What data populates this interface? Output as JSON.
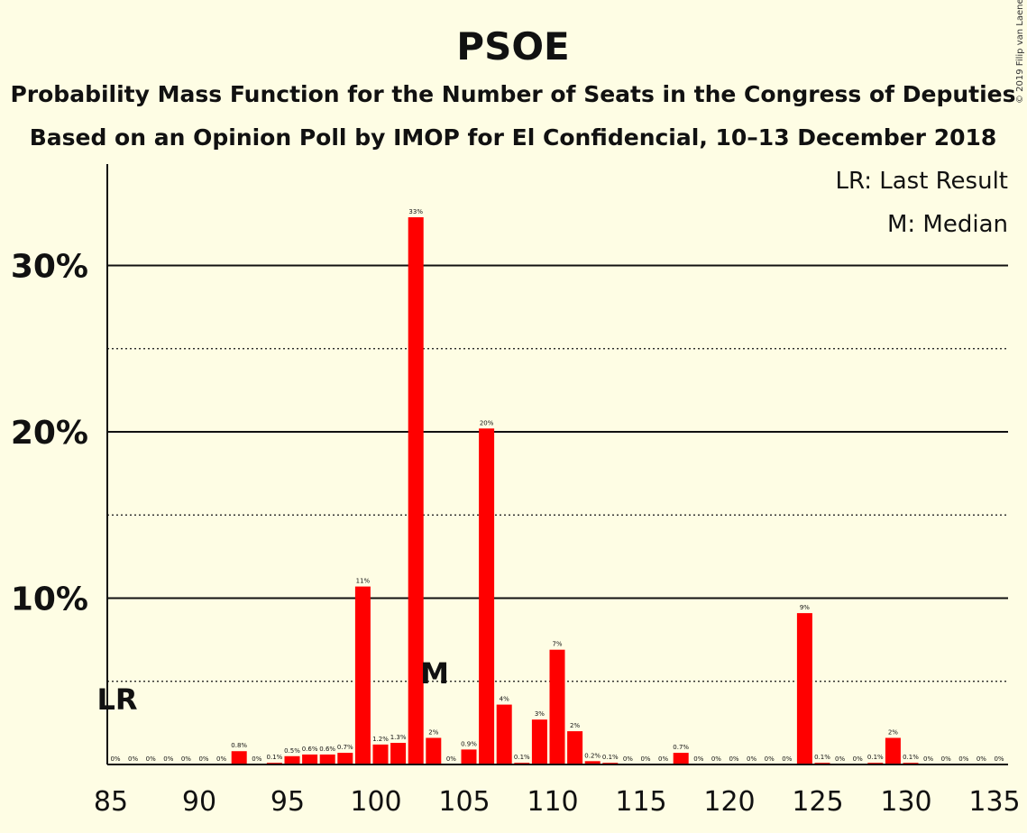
{
  "title": "PSOE",
  "subtitle1": "Probability Mass Function for the Number of Seats in the Congress of Deputies",
  "subtitle2": "Based on an Opinion Poll by IMOP for El Confidencial, 10–13 December 2018",
  "copyright": "© 2019 Filip van Laenen",
  "legend": {
    "lr": "LR: Last Result",
    "median": "M: Median"
  },
  "markers": {
    "lr_label": "LR",
    "median_label": "M"
  },
  "colors": {
    "bar": "#FF0000",
    "background": "#FEFDE4"
  },
  "chart_data": {
    "type": "bar",
    "x": [
      85,
      86,
      87,
      88,
      89,
      90,
      91,
      92,
      93,
      94,
      95,
      96,
      97,
      98,
      99,
      100,
      101,
      102,
      103,
      104,
      105,
      106,
      107,
      108,
      109,
      110,
      111,
      112,
      113,
      114,
      115,
      116,
      117,
      118,
      119,
      120,
      121,
      122,
      123,
      124,
      125,
      126,
      127,
      128,
      129,
      130,
      131,
      132,
      133,
      134,
      135
    ],
    "values": [
      0,
      0,
      0,
      0,
      0,
      0,
      0,
      0.8,
      0,
      0.1,
      0.5,
      0.6,
      0.6,
      0.7,
      10.7,
      1.2,
      1.3,
      32.9,
      1.6,
      0,
      0.9,
      20.2,
      3.6,
      0.1,
      2.7,
      6.9,
      2.0,
      0.2,
      0.1,
      0,
      0,
      0,
      0.7,
      0,
      0,
      0,
      0,
      0,
      0,
      9.1,
      0.1,
      0,
      0,
      0.1,
      1.6,
      0.1,
      0,
      0,
      0,
      0,
      0
    ],
    "labels": [
      "0%",
      "0%",
      "0%",
      "0%",
      "0%",
      "0%",
      "0%",
      "0.8%",
      "0%",
      "0.1%",
      "0.5%",
      "0.6%",
      "0.6%",
      "0.7%",
      "11%",
      "1.2%",
      "1.3%",
      "33%",
      "2%",
      "0%",
      "0.9%",
      "20%",
      "4%",
      "0.1%",
      "3%",
      "7%",
      "2%",
      "0.2%",
      "0.1%",
      "0%",
      "0%",
      "0%",
      "0.7%",
      "0%",
      "0%",
      "0%",
      "0%",
      "0%",
      "0%",
      "9%",
      "0.1%",
      "0%",
      "0%",
      "0.1%",
      "2%",
      "0.1%",
      "0%",
      "0%",
      "0%",
      "0%",
      "0%"
    ],
    "xticks": [
      85,
      90,
      95,
      100,
      105,
      110,
      115,
      120,
      125,
      130,
      135
    ],
    "xtick_labels": [
      "85",
      "90",
      "95",
      "100",
      "105",
      "110",
      "115",
      "120",
      "125",
      "130",
      "135"
    ],
    "yticks_major": [
      10,
      20,
      30
    ],
    "ytick_labels": [
      "10%",
      "20%",
      "30%"
    ],
    "yticks_minor": [
      5,
      15,
      25
    ],
    "ylim": [
      0,
      36
    ],
    "last_result": 85,
    "median": 103,
    "grid": true,
    "legend_position": "top-right"
  }
}
